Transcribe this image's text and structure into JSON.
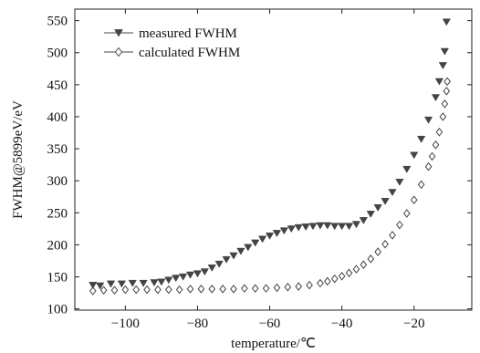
{
  "chart_data": {
    "type": "scatter",
    "xlabel": "temperature/℃",
    "ylabel": "FWHM@5899eV/eV",
    "xlim": [
      -114,
      -4
    ],
    "ylim": [
      98,
      568
    ],
    "xticks": [
      -100,
      -80,
      -60,
      -40,
      -20
    ],
    "xtick_labels": [
      "−100",
      "−80",
      "−60",
      "−40",
      "−20"
    ],
    "yticks": [
      100,
      150,
      200,
      250,
      300,
      350,
      400,
      450,
      500,
      550
    ],
    "ytick_labels": [
      "100",
      "150",
      "200",
      "250",
      "300",
      "350",
      "400",
      "450",
      "500",
      "550"
    ],
    "grid": false,
    "legend_position": "top-left",
    "series": [
      {
        "name": "measured FWHM",
        "marker": "filled-down-triangle",
        "color": "#444444",
        "points": [
          [
            -109,
            137
          ],
          [
            -107,
            136
          ],
          [
            -104,
            139
          ],
          [
            -101,
            139
          ],
          [
            -98,
            140
          ],
          [
            -95,
            140
          ],
          [
            -92,
            141
          ],
          [
            -90,
            142
          ],
          [
            -88,
            145
          ],
          [
            -86,
            148
          ],
          [
            -84,
            150
          ],
          [
            -82,
            153
          ],
          [
            -80,
            155
          ],
          [
            -78,
            158
          ],
          [
            -76,
            164
          ],
          [
            -74,
            170
          ],
          [
            -72,
            177
          ],
          [
            -70,
            183
          ],
          [
            -68,
            190
          ],
          [
            -66,
            196
          ],
          [
            -64,
            203
          ],
          [
            -62,
            209
          ],
          [
            -60,
            214
          ],
          [
            -58,
            218
          ],
          [
            -56,
            222
          ],
          [
            -54,
            225
          ],
          [
            -52,
            227
          ],
          [
            -50,
            228
          ],
          [
            -48,
            229
          ],
          [
            -46,
            230
          ],
          [
            -44,
            230
          ],
          [
            -42,
            229
          ],
          [
            -40,
            229
          ],
          [
            -38,
            229
          ],
          [
            -36,
            232
          ],
          [
            -34,
            238
          ],
          [
            -32,
            248
          ],
          [
            -30,
            258
          ],
          [
            -28,
            268
          ],
          [
            -26,
            282
          ],
          [
            -24,
            298
          ],
          [
            -22,
            318
          ],
          [
            -20,
            340
          ],
          [
            -18,
            365
          ],
          [
            -16,
            395
          ],
          [
            -14,
            430
          ],
          [
            -13,
            455
          ],
          [
            -12,
            480
          ],
          [
            -11.5,
            502
          ],
          [
            -11,
            548
          ]
        ]
      },
      {
        "name": "calculated FWHM",
        "marker": "open-diamond",
        "color": "#444444",
        "points": [
          [
            -109,
            128
          ],
          [
            -106,
            129
          ],
          [
            -103,
            129
          ],
          [
            -100,
            130
          ],
          [
            -97,
            130
          ],
          [
            -94,
            130
          ],
          [
            -91,
            130
          ],
          [
            -88,
            130
          ],
          [
            -85,
            130
          ],
          [
            -82,
            131
          ],
          [
            -79,
            131
          ],
          [
            -76,
            131
          ],
          [
            -73,
            131
          ],
          [
            -70,
            131
          ],
          [
            -67,
            132
          ],
          [
            -64,
            132
          ],
          [
            -61,
            132
          ],
          [
            -58,
            133
          ],
          [
            -55,
            134
          ],
          [
            -52,
            135
          ],
          [
            -49,
            137
          ],
          [
            -46,
            140
          ],
          [
            -44,
            143
          ],
          [
            -42,
            147
          ],
          [
            -40,
            151
          ],
          [
            -38,
            156
          ],
          [
            -36,
            162
          ],
          [
            -34,
            169
          ],
          [
            -32,
            178
          ],
          [
            -30,
            189
          ],
          [
            -28,
            201
          ],
          [
            -26,
            215
          ],
          [
            -24,
            231
          ],
          [
            -22,
            249
          ],
          [
            -20,
            270
          ],
          [
            -18,
            294
          ],
          [
            -16,
            322
          ],
          [
            -15,
            338
          ],
          [
            -14,
            356
          ],
          [
            -13,
            376
          ],
          [
            -12,
            400
          ],
          [
            -11.5,
            420
          ],
          [
            -11,
            440
          ],
          [
            -10.8,
            455
          ]
        ]
      }
    ]
  }
}
